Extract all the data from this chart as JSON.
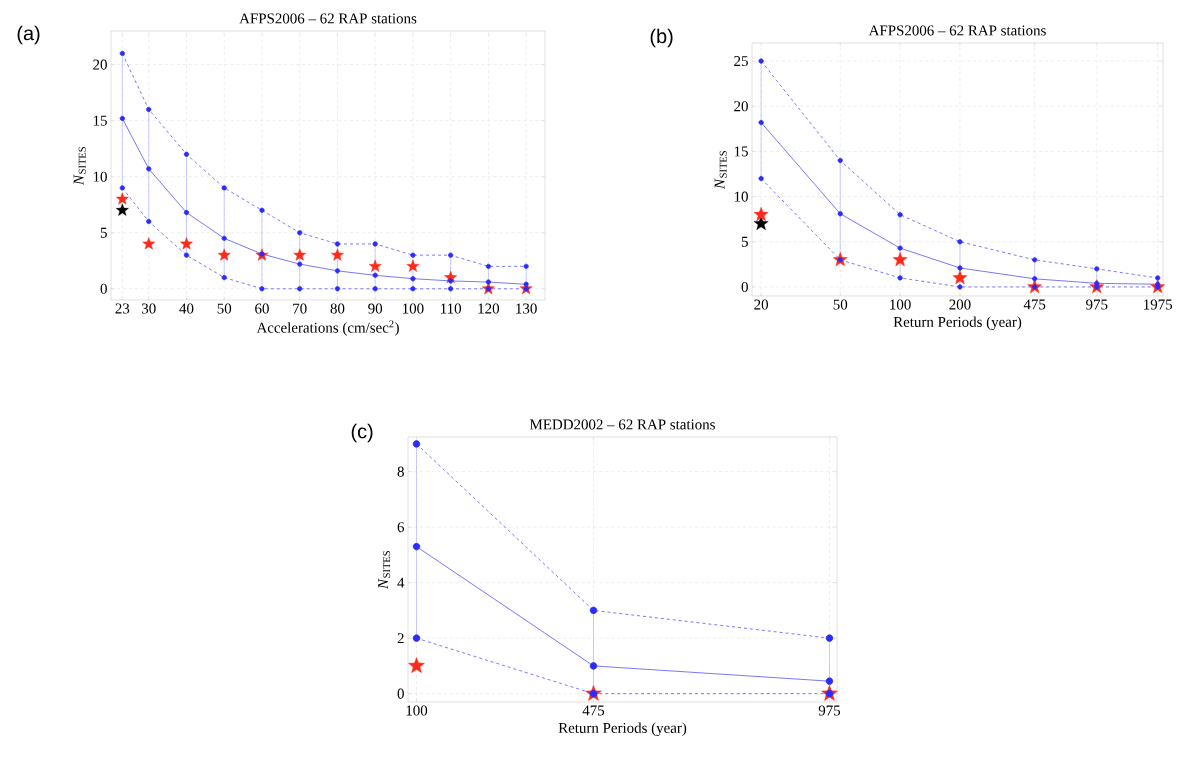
{
  "chart_data": [
    {
      "type": "line",
      "title": "AFPS2006 – 62 RAP stations",
      "xlabel": "Accelerations (cm/sec$^{2}$)",
      "ylabel": "*N*$_{SITES}$",
      "annotations": [
        "(a)"
      ],
      "grid": true,
      "x": [
        23,
        30,
        40,
        50,
        60,
        70,
        80,
        90,
        100,
        110,
        120,
        130
      ],
      "xlim": [
        20,
        135
      ],
      "xticks": [
        23,
        30,
        40,
        50,
        60,
        70,
        80,
        90,
        100,
        110,
        120,
        130
      ],
      "ylim": [
        -1,
        23
      ],
      "yticks": [
        0,
        5,
        10,
        15,
        20
      ],
      "series": [
        {
          "color": "#2b2bff",
          "line_style": "dashed",
          "marker": "circle",
          "values": [
            21,
            16,
            12,
            9,
            7,
            5,
            4,
            4,
            3,
            3,
            2,
            2
          ]
        },
        {
          "color": "#2b2bff",
          "line_style": "solid",
          "marker": "circle",
          "values": [
            15.2,
            10.7,
            6.8,
            4.5,
            3.1,
            2.2,
            1.6,
            1.2,
            0.9,
            0.7,
            0.6,
            0.4
          ],
          "errors": [
            [
              9,
              21
            ],
            [
              6,
              16
            ],
            [
              3,
              12
            ],
            [
              1,
              9
            ],
            [
              0,
              7
            ],
            [
              0,
              5
            ],
            [
              0,
              4
            ],
            [
              0,
              4
            ],
            [
              0,
              3
            ],
            [
              0,
              3
            ],
            [
              0,
              2
            ],
            [
              0,
              2
            ]
          ]
        },
        {
          "color": "#2b2bff",
          "line_style": "dashed",
          "marker": "circle",
          "values": [
            9,
            6,
            3,
            1,
            0,
            0,
            0,
            0,
            0,
            0,
            0,
            0
          ]
        },
        {
          "type": "scatter",
          "color": "#000000",
          "marker": "star",
          "values": [
            7,
            null,
            null,
            null,
            null,
            null,
            null,
            null,
            null,
            null,
            null,
            null
          ]
        },
        {
          "type": "scatter",
          "color": "#ff2a1a",
          "marker": "star",
          "values": [
            8,
            4,
            4,
            3,
            3,
            3,
            3,
            2,
            2,
            1,
            0,
            0
          ]
        }
      ]
    },
    {
      "type": "line",
      "title": "AFPS2006 – 62 RAP stations",
      "xlabel": "Return Periods (year)",
      "ylabel": "*N*$_{SITES}$",
      "annotations": [
        "(b)"
      ],
      "grid": true,
      "log": "x",
      "x": [
        20,
        50,
        100,
        200,
        475,
        975,
        1975
      ],
      "xlim": [
        18,
        2100
      ],
      "xticks": [
        20,
        50,
        100,
        200,
        475,
        975,
        1975
      ],
      "ylim": [
        -1,
        27
      ],
      "yticks": [
        0,
        5,
        10,
        15,
        20,
        25
      ],
      "series": [
        {
          "color": "#2b2bff",
          "line_style": "dashed",
          "marker": "circle",
          "values": [
            25,
            14,
            8,
            5,
            3,
            2,
            1
          ]
        },
        {
          "color": "#2b2bff",
          "line_style": "solid",
          "marker": "circle",
          "values": [
            18.2,
            8.1,
            4.3,
            2.1,
            0.9,
            0.4,
            0.3
          ],
          "errors": [
            [
              12,
              25
            ],
            [
              3,
              14
            ],
            [
              1,
              8
            ],
            [
              0,
              5
            ],
            [
              0,
              3
            ],
            [
              0,
              2
            ],
            [
              0,
              1
            ]
          ]
        },
        {
          "color": "#2b2bff",
          "line_style": "dashed",
          "marker": "circle",
          "values": [
            12,
            3,
            1,
            0,
            0,
            0,
            0
          ]
        },
        {
          "type": "scatter",
          "color": "#000000",
          "marker": "star",
          "values": [
            7,
            null,
            null,
            null,
            null,
            null,
            null
          ]
        },
        {
          "type": "scatter",
          "color": "#ff2a1a",
          "marker": "star",
          "values": [
            8,
            3,
            3,
            1,
            0,
            0,
            0
          ]
        }
      ]
    },
    {
      "type": "line",
      "title": "MEDD2002 – 62 RAP stations",
      "xlabel": "Return Periods (year)",
      "ylabel": "*N*$_{SITES}$",
      "annotations": [
        "(c)"
      ],
      "grid": true,
      "x": [
        100,
        475,
        975
      ],
      "xlim": [
        82,
        991
      ],
      "xticks": [
        100,
        475,
        975
      ],
      "ylim": [
        -0.3,
        9.25
      ],
      "yticks": [
        0,
        2,
        4,
        6,
        8
      ],
      "series": [
        {
          "color": "#2b2bff",
          "line_style": "dashed",
          "marker": "circle",
          "values": [
            9,
            3,
            2
          ]
        },
        {
          "color": "#2b2bff",
          "line_style": "solid",
          "marker": "circle",
          "values": [
            5.3,
            1,
            0.45
          ],
          "errors": [
            [
              2,
              9
            ],
            [
              0,
              3
            ],
            [
              0,
              2
            ]
          ]
        },
        {
          "color": "#2b2bff",
          "line_style": "dashed",
          "marker": "circle",
          "values": [
            2,
            0,
            0
          ]
        },
        {
          "type": "scatter",
          "color": "#ff2a1a",
          "marker": "star",
          "values": [
            1,
            0,
            0
          ]
        }
      ]
    }
  ]
}
